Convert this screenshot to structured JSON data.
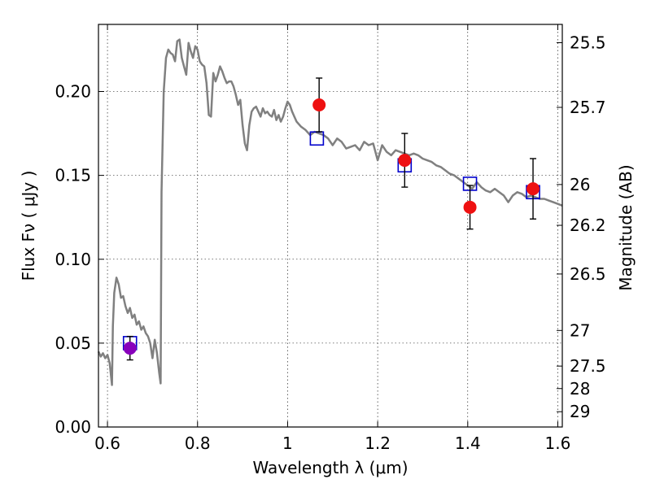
{
  "chart_data": {
    "type": "scatter",
    "title": "",
    "xlabel": "Wavelength  λ (μm)",
    "ylabel": "Flux  Fν  ( μJy )",
    "y2label": "Magnitude (AB)",
    "xlim": [
      0.58,
      1.61
    ],
    "ylim": [
      0.0,
      0.24
    ],
    "grid": true,
    "legend": "none",
    "xticks": [
      {
        "value": 0.6,
        "label": "0.6"
      },
      {
        "value": 0.8,
        "label": "0.8"
      },
      {
        "value": 1.0,
        "label": "1"
      },
      {
        "value": 1.2,
        "label": "1.2"
      },
      {
        "value": 1.4,
        "label": "1.4"
      },
      {
        "value": 1.6,
        "label": "1.6"
      }
    ],
    "yticks": [
      {
        "value": 0.0,
        "label": "0.00"
      },
      {
        "value": 0.05,
        "label": "0.05"
      },
      {
        "value": 0.1,
        "label": "0.10"
      },
      {
        "value": 0.15,
        "label": "0.15"
      },
      {
        "value": 0.2,
        "label": "0.20"
      }
    ],
    "y2ticks": [
      {
        "value": 25.5,
        "label": "25.5"
      },
      {
        "value": 25.7,
        "label": "25.7"
      },
      {
        "value": 26.0,
        "label": "26"
      },
      {
        "value": 26.2,
        "label": "26.2"
      },
      {
        "value": 26.5,
        "label": "26.5"
      },
      {
        "value": 27.0,
        "label": "27"
      },
      {
        "value": 27.5,
        "label": "27.5"
      },
      {
        "value": 28.0,
        "label": "28"
      },
      {
        "value": 29.0,
        "label": "29"
      }
    ],
    "series": [
      {
        "kind": "line",
        "color": "#808080",
        "x": [
          0.58,
          0.585,
          0.59,
          0.595,
          0.6,
          0.605,
          0.61,
          0.612,
          0.615,
          0.62,
          0.625,
          0.63,
          0.635,
          0.64,
          0.645,
          0.65,
          0.655,
          0.66,
          0.665,
          0.67,
          0.675,
          0.68,
          0.685,
          0.69,
          0.695,
          0.7,
          0.705,
          0.71,
          0.715,
          0.718,
          0.72,
          0.725,
          0.73,
          0.735,
          0.74,
          0.745,
          0.75,
          0.755,
          0.76,
          0.765,
          0.77,
          0.775,
          0.78,
          0.785,
          0.79,
          0.795,
          0.8,
          0.805,
          0.81,
          0.815,
          0.82,
          0.825,
          0.83,
          0.835,
          0.84,
          0.845,
          0.85,
          0.855,
          0.86,
          0.865,
          0.87,
          0.875,
          0.88,
          0.885,
          0.89,
          0.895,
          0.9,
          0.905,
          0.91,
          0.915,
          0.92,
          0.925,
          0.93,
          0.935,
          0.94,
          0.945,
          0.95,
          0.955,
          0.96,
          0.965,
          0.97,
          0.975,
          0.98,
          0.985,
          0.99,
          0.995,
          1.0,
          1.005,
          1.01,
          1.015,
          1.02,
          1.03,
          1.04,
          1.05,
          1.06,
          1.07,
          1.08,
          1.09,
          1.1,
          1.11,
          1.12,
          1.13,
          1.14,
          1.15,
          1.16,
          1.17,
          1.18,
          1.19,
          1.2,
          1.21,
          1.22,
          1.23,
          1.24,
          1.25,
          1.26,
          1.27,
          1.28,
          1.29,
          1.3,
          1.31,
          1.32,
          1.33,
          1.34,
          1.35,
          1.36,
          1.37,
          1.38,
          1.39,
          1.4,
          1.41,
          1.42,
          1.43,
          1.44,
          1.45,
          1.46,
          1.47,
          1.48,
          1.49,
          1.5,
          1.51,
          1.52,
          1.53,
          1.54,
          1.55,
          1.56,
          1.57,
          1.58,
          1.59,
          1.6,
          1.61
        ],
        "y": [
          0.045,
          0.042,
          0.044,
          0.041,
          0.043,
          0.038,
          0.025,
          0.06,
          0.08,
          0.089,
          0.085,
          0.077,
          0.078,
          0.072,
          0.068,
          0.071,
          0.065,
          0.067,
          0.061,
          0.063,
          0.058,
          0.06,
          0.056,
          0.054,
          0.05,
          0.041,
          0.052,
          0.044,
          0.032,
          0.026,
          0.14,
          0.2,
          0.22,
          0.225,
          0.223,
          0.222,
          0.218,
          0.23,
          0.231,
          0.22,
          0.215,
          0.21,
          0.229,
          0.224,
          0.22,
          0.227,
          0.225,
          0.218,
          0.216,
          0.215,
          0.205,
          0.186,
          0.185,
          0.211,
          0.206,
          0.21,
          0.215,
          0.212,
          0.208,
          0.205,
          0.206,
          0.206,
          0.203,
          0.198,
          0.192,
          0.195,
          0.18,
          0.169,
          0.165,
          0.18,
          0.188,
          0.19,
          0.191,
          0.188,
          0.185,
          0.19,
          0.187,
          0.188,
          0.186,
          0.185,
          0.189,
          0.183,
          0.186,
          0.182,
          0.185,
          0.19,
          0.194,
          0.192,
          0.188,
          0.185,
          0.182,
          0.179,
          0.177,
          0.174,
          0.176,
          0.175,
          0.174,
          0.172,
          0.168,
          0.172,
          0.17,
          0.166,
          0.167,
          0.168,
          0.165,
          0.17,
          0.168,
          0.169,
          0.159,
          0.168,
          0.164,
          0.162,
          0.165,
          0.164,
          0.163,
          0.162,
          0.163,
          0.162,
          0.16,
          0.159,
          0.158,
          0.156,
          0.155,
          0.153,
          0.151,
          0.15,
          0.148,
          0.146,
          0.144,
          0.142,
          0.146,
          0.143,
          0.141,
          0.14,
          0.142,
          0.14,
          0.138,
          0.134,
          0.138,
          0.14,
          0.139,
          0.137,
          0.138,
          0.137,
          0.136,
          0.136,
          0.135,
          0.134,
          0.133,
          0.132
        ]
      },
      {
        "kind": "square",
        "color": "#0000cc",
        "x": [
          0.65,
          1.065,
          1.26,
          1.405,
          1.545
        ],
        "y": [
          0.05,
          0.172,
          0.156,
          0.145,
          0.14
        ]
      },
      {
        "kind": "circle",
        "color": "#ee1111",
        "x": [
          0.65,
          1.07,
          1.26,
          1.405,
          1.545
        ],
        "y": [
          0.047,
          0.192,
          0.159,
          0.131,
          0.142
        ],
        "yerr": [
          0.007,
          0.016,
          0.016,
          0.013,
          0.018
        ],
        "point_colors": [
          "#8800bb",
          "#ee1111",
          "#ee1111",
          "#ee1111",
          "#ee1111"
        ]
      }
    ]
  }
}
